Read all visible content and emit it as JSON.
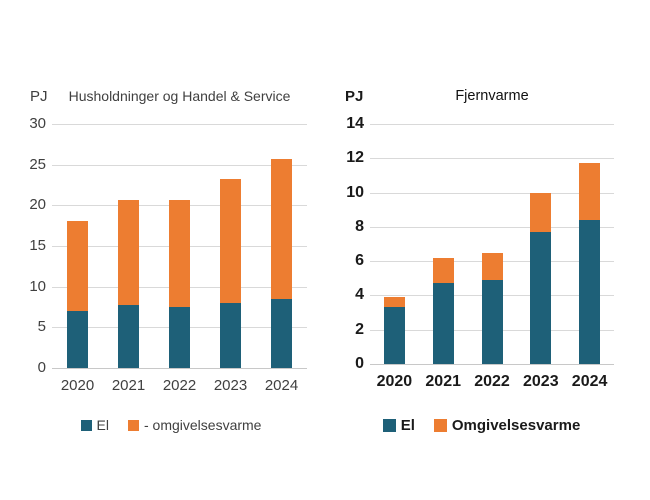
{
  "page": {
    "background": "#ffffff"
  },
  "colors": {
    "el": "#1e6078",
    "omgivelsesvarme": "#ed7d31",
    "gridline": "#d9d9d9",
    "axis_line": "#c8c8c8",
    "left_chart_text": "#404040",
    "right_chart_text": "#1a1a1a"
  },
  "chart_data": [
    {
      "type": "bar",
      "stacked": true,
      "title": "Husholdninger og Handel & Service",
      "unit_label": "PJ",
      "categories": [
        "2020",
        "2021",
        "2022",
        "2023",
        "2024"
      ],
      "series": [
        {
          "name": "El",
          "color": "#1e6078",
          "values": [
            7.0,
            7.8,
            7.5,
            8.0,
            8.5
          ]
        },
        {
          "name": "- omgivelsesvarme",
          "color": "#ed7d31",
          "values": [
            11.1,
            12.9,
            13.2,
            15.3,
            17.2
          ]
        }
      ],
      "totals": [
        18.1,
        20.7,
        20.7,
        23.3,
        25.7
      ],
      "xlabel": "",
      "ylabel": "PJ",
      "ylim": [
        0,
        30
      ],
      "ytick_step": 5,
      "grid": true,
      "legend_position": "bottom"
    },
    {
      "type": "bar",
      "stacked": true,
      "title": "Fjernvarme",
      "unit_label": "PJ",
      "categories": [
        "2020",
        "2021",
        "2022",
        "2023",
        "2024"
      ],
      "series": [
        {
          "name": "El",
          "color": "#1e6078",
          "values": [
            3.3,
            4.7,
            4.9,
            7.7,
            8.4
          ]
        },
        {
          "name": "Omgivelsesvarme",
          "color": "#ed7d31",
          "values": [
            0.6,
            1.5,
            1.6,
            2.3,
            3.3
          ]
        }
      ],
      "totals": [
        3.9,
        6.2,
        6.5,
        10.0,
        11.7
      ],
      "xlabel": "",
      "ylabel": "PJ",
      "ylim": [
        0,
        14
      ],
      "ytick_step": 2,
      "grid": true,
      "legend_position": "bottom"
    }
  ]
}
